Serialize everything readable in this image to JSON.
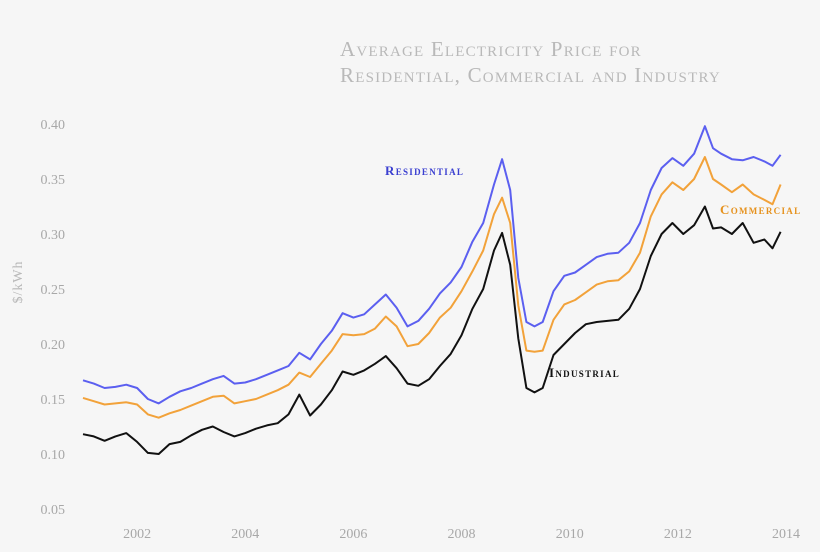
{
  "chart_data": {
    "type": "line",
    "title": [
      "Average Electricity Price for",
      "Residential, Commercial and Industry"
    ],
    "xlabel": "",
    "ylabel": "$/kWh",
    "xlim": [
      2001.0,
      2014.0
    ],
    "ylim": [
      0.05,
      0.4
    ],
    "xticks": [
      2002,
      2004,
      2006,
      2008,
      2010,
      2012,
      2014
    ],
    "yticks": [
      0.05,
      0.1,
      0.15,
      0.2,
      0.25,
      0.3,
      0.35,
      0.4
    ],
    "ytick_labels": [
      "0.05",
      "0.10",
      "0.15",
      "0.20",
      "0.25",
      "0.30",
      "0.35",
      "0.40"
    ],
    "grid": false,
    "series": [
      {
        "name": "Residential",
        "color": "#5b5ff0",
        "points": [
          [
            2001.0,
            0.167
          ],
          [
            2001.2,
            0.164
          ],
          [
            2001.4,
            0.16
          ],
          [
            2001.6,
            0.161
          ],
          [
            2001.8,
            0.163
          ],
          [
            2002.0,
            0.16
          ],
          [
            2002.2,
            0.15
          ],
          [
            2002.4,
            0.146
          ],
          [
            2002.6,
            0.152
          ],
          [
            2002.8,
            0.157
          ],
          [
            2003.0,
            0.16
          ],
          [
            2003.2,
            0.164
          ],
          [
            2003.4,
            0.168
          ],
          [
            2003.6,
            0.171
          ],
          [
            2003.8,
            0.164
          ],
          [
            2004.0,
            0.165
          ],
          [
            2004.2,
            0.168
          ],
          [
            2004.4,
            0.172
          ],
          [
            2004.6,
            0.176
          ],
          [
            2004.8,
            0.18
          ],
          [
            2005.0,
            0.192
          ],
          [
            2005.2,
            0.186
          ],
          [
            2005.4,
            0.2
          ],
          [
            2005.6,
            0.212
          ],
          [
            2005.8,
            0.228
          ],
          [
            2006.0,
            0.224
          ],
          [
            2006.2,
            0.227
          ],
          [
            2006.4,
            0.236
          ],
          [
            2006.6,
            0.245
          ],
          [
            2006.8,
            0.233
          ],
          [
            2007.0,
            0.216
          ],
          [
            2007.2,
            0.221
          ],
          [
            2007.4,
            0.232
          ],
          [
            2007.6,
            0.246
          ],
          [
            2007.8,
            0.256
          ],
          [
            2008.0,
            0.27
          ],
          [
            2008.2,
            0.293
          ],
          [
            2008.4,
            0.31
          ],
          [
            2008.6,
            0.345
          ],
          [
            2008.75,
            0.368
          ],
          [
            2008.9,
            0.34
          ],
          [
            2009.05,
            0.26
          ],
          [
            2009.2,
            0.22
          ],
          [
            2009.35,
            0.216
          ],
          [
            2009.5,
            0.22
          ],
          [
            2009.7,
            0.248
          ],
          [
            2009.9,
            0.262
          ],
          [
            2010.1,
            0.265
          ],
          [
            2010.3,
            0.272
          ],
          [
            2010.5,
            0.279
          ],
          [
            2010.7,
            0.282
          ],
          [
            2010.9,
            0.283
          ],
          [
            2011.1,
            0.292
          ],
          [
            2011.3,
            0.31
          ],
          [
            2011.5,
            0.34
          ],
          [
            2011.7,
            0.36
          ],
          [
            2011.9,
            0.369
          ],
          [
            2012.1,
            0.362
          ],
          [
            2012.3,
            0.373
          ],
          [
            2012.5,
            0.398
          ],
          [
            2012.65,
            0.378
          ],
          [
            2012.8,
            0.373
          ],
          [
            2013.0,
            0.368
          ],
          [
            2013.2,
            0.367
          ],
          [
            2013.4,
            0.37
          ],
          [
            2013.6,
            0.366
          ],
          [
            2013.75,
            0.362
          ],
          [
            2013.9,
            0.372
          ]
        ]
      },
      {
        "name": "Commercial",
        "color": "#f2a23a",
        "points": [
          [
            2001.0,
            0.151
          ],
          [
            2001.2,
            0.148
          ],
          [
            2001.4,
            0.145
          ],
          [
            2001.6,
            0.146
          ],
          [
            2001.8,
            0.147
          ],
          [
            2002.0,
            0.145
          ],
          [
            2002.2,
            0.136
          ],
          [
            2002.4,
            0.133
          ],
          [
            2002.6,
            0.137
          ],
          [
            2002.8,
            0.14
          ],
          [
            2003.0,
            0.144
          ],
          [
            2003.2,
            0.148
          ],
          [
            2003.4,
            0.152
          ],
          [
            2003.6,
            0.153
          ],
          [
            2003.8,
            0.146
          ],
          [
            2004.0,
            0.148
          ],
          [
            2004.2,
            0.15
          ],
          [
            2004.4,
            0.154
          ],
          [
            2004.6,
            0.158
          ],
          [
            2004.8,
            0.163
          ],
          [
            2005.0,
            0.174
          ],
          [
            2005.2,
            0.17
          ],
          [
            2005.4,
            0.182
          ],
          [
            2005.6,
            0.194
          ],
          [
            2005.8,
            0.209
          ],
          [
            2006.0,
            0.208
          ],
          [
            2006.2,
            0.209
          ],
          [
            2006.4,
            0.214
          ],
          [
            2006.6,
            0.225
          ],
          [
            2006.8,
            0.216
          ],
          [
            2007.0,
            0.198
          ],
          [
            2007.2,
            0.2
          ],
          [
            2007.4,
            0.21
          ],
          [
            2007.6,
            0.224
          ],
          [
            2007.8,
            0.233
          ],
          [
            2008.0,
            0.248
          ],
          [
            2008.2,
            0.266
          ],
          [
            2008.4,
            0.285
          ],
          [
            2008.6,
            0.318
          ],
          [
            2008.75,
            0.333
          ],
          [
            2008.9,
            0.31
          ],
          [
            2009.05,
            0.235
          ],
          [
            2009.2,
            0.194
          ],
          [
            2009.35,
            0.193
          ],
          [
            2009.5,
            0.194
          ],
          [
            2009.7,
            0.222
          ],
          [
            2009.9,
            0.236
          ],
          [
            2010.1,
            0.24
          ],
          [
            2010.3,
            0.247
          ],
          [
            2010.5,
            0.254
          ],
          [
            2010.7,
            0.257
          ],
          [
            2010.9,
            0.258
          ],
          [
            2011.1,
            0.266
          ],
          [
            2011.3,
            0.283
          ],
          [
            2011.5,
            0.316
          ],
          [
            2011.7,
            0.336
          ],
          [
            2011.9,
            0.347
          ],
          [
            2012.1,
            0.34
          ],
          [
            2012.3,
            0.35
          ],
          [
            2012.5,
            0.37
          ],
          [
            2012.65,
            0.35
          ],
          [
            2012.8,
            0.345
          ],
          [
            2013.0,
            0.338
          ],
          [
            2013.2,
            0.345
          ],
          [
            2013.4,
            0.336
          ],
          [
            2013.6,
            0.331
          ],
          [
            2013.75,
            0.327
          ],
          [
            2013.9,
            0.345
          ]
        ]
      },
      {
        "name": "Industrial",
        "color": "#111111",
        "points": [
          [
            2001.0,
            0.118
          ],
          [
            2001.2,
            0.116
          ],
          [
            2001.4,
            0.112
          ],
          [
            2001.6,
            0.116
          ],
          [
            2001.8,
            0.119
          ],
          [
            2002.0,
            0.111
          ],
          [
            2002.2,
            0.101
          ],
          [
            2002.4,
            0.1
          ],
          [
            2002.6,
            0.109
          ],
          [
            2002.8,
            0.111
          ],
          [
            2003.0,
            0.117
          ],
          [
            2003.2,
            0.122
          ],
          [
            2003.4,
            0.125
          ],
          [
            2003.6,
            0.12
          ],
          [
            2003.8,
            0.116
          ],
          [
            2004.0,
            0.119
          ],
          [
            2004.2,
            0.123
          ],
          [
            2004.4,
            0.126
          ],
          [
            2004.6,
            0.128
          ],
          [
            2004.8,
            0.136
          ],
          [
            2005.0,
            0.154
          ],
          [
            2005.2,
            0.135
          ],
          [
            2005.4,
            0.145
          ],
          [
            2005.6,
            0.158
          ],
          [
            2005.8,
            0.175
          ],
          [
            2006.0,
            0.172
          ],
          [
            2006.2,
            0.176
          ],
          [
            2006.4,
            0.182
          ],
          [
            2006.6,
            0.189
          ],
          [
            2006.8,
            0.178
          ],
          [
            2007.0,
            0.164
          ],
          [
            2007.2,
            0.162
          ],
          [
            2007.4,
            0.168
          ],
          [
            2007.6,
            0.18
          ],
          [
            2007.8,
            0.191
          ],
          [
            2008.0,
            0.208
          ],
          [
            2008.2,
            0.232
          ],
          [
            2008.4,
            0.25
          ],
          [
            2008.6,
            0.285
          ],
          [
            2008.75,
            0.301
          ],
          [
            2008.9,
            0.272
          ],
          [
            2009.05,
            0.205
          ],
          [
            2009.2,
            0.16
          ],
          [
            2009.35,
            0.156
          ],
          [
            2009.5,
            0.16
          ],
          [
            2009.7,
            0.19
          ],
          [
            2009.9,
            0.2
          ],
          [
            2010.1,
            0.21
          ],
          [
            2010.3,
            0.218
          ],
          [
            2010.5,
            0.22
          ],
          [
            2010.7,
            0.221
          ],
          [
            2010.9,
            0.222
          ],
          [
            2011.1,
            0.232
          ],
          [
            2011.3,
            0.25
          ],
          [
            2011.5,
            0.28
          ],
          [
            2011.7,
            0.3
          ],
          [
            2011.9,
            0.31
          ],
          [
            2012.1,
            0.3
          ],
          [
            2012.3,
            0.308
          ],
          [
            2012.5,
            0.325
          ],
          [
            2012.65,
            0.305
          ],
          [
            2012.8,
            0.306
          ],
          [
            2013.0,
            0.3
          ],
          [
            2013.2,
            0.31
          ],
          [
            2013.4,
            0.292
          ],
          [
            2013.6,
            0.295
          ],
          [
            2013.75,
            0.287
          ],
          [
            2013.9,
            0.302
          ]
        ]
      }
    ]
  }
}
